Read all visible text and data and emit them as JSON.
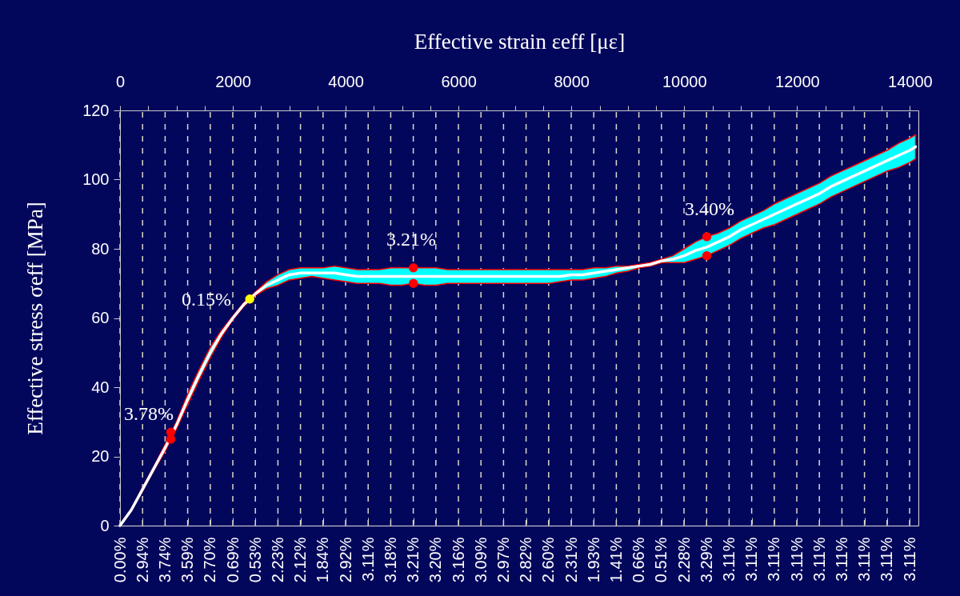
{
  "chart_data": {
    "type": "line",
    "x2label": "Effective strain εeff [με]",
    "ylabel": "Effective stress σeff [MPa]",
    "categories": [
      "0.00%",
      "2.94%",
      "3.74%",
      "3.59%",
      "2.70%",
      "0.69%",
      "0.53%",
      "2.23%",
      "2.12%",
      "1.84%",
      "2.92%",
      "3.11%",
      "3.18%",
      "3.21%",
      "3.20%",
      "3.16%",
      "3.09%",
      "2.97%",
      "2.82%",
      "2.60%",
      "2.31%",
      "1.93%",
      "1.41%",
      "0.66%",
      "0.51%",
      "2.28%",
      "3.29%",
      "3.11%",
      "3.11%",
      "3.11%",
      "3.11%",
      "3.11%",
      "3.11%",
      "3.11%",
      "3.11%",
      "3.11%"
    ],
    "x2lim": [
      0,
      14150
    ],
    "ylim": [
      0,
      120
    ],
    "yticks": [
      0,
      20,
      40,
      60,
      80,
      100,
      120
    ],
    "x2ticks": [
      0,
      {
        "value": 500,
        "label": null
      },
      {
        "value": 1000,
        "label": null
      },
      {
        "value": 1500,
        "label": null
      },
      2000,
      {
        "value": 2500,
        "label": null
      },
      {
        "value": 3000,
        "label": null
      },
      {
        "value": 3500,
        "label": null
      },
      4000,
      {
        "value": 4500,
        "label": null
      },
      {
        "value": 5000,
        "label": null
      },
      {
        "value": 5500,
        "label": null
      },
      6000,
      {
        "value": 6500,
        "label": null
      },
      {
        "value": 7000,
        "label": null
      },
      {
        "value": 7500,
        "label": null
      },
      8000,
      {
        "value": 8500,
        "label": null
      },
      {
        "value": 9000,
        "label": null
      },
      {
        "value": 9500,
        "label": null
      },
      10000,
      {
        "value": 10500,
        "label": null
      },
      {
        "value": 11000,
        "label": null
      },
      {
        "value": 11500,
        "label": null
      },
      12000,
      {
        "value": 12500,
        "label": null
      },
      {
        "value": 13000,
        "label": null
      },
      {
        "value": 13500,
        "label": null
      },
      14000
    ],
    "grid": "x",
    "series": [
      {
        "axis": "x2",
        "color": "#ffffff",
        "x": [
          0,
          200,
          400,
          600,
          800,
          1000,
          1200,
          1400,
          1600,
          1800,
          2000,
          2200,
          2400,
          2600,
          2800,
          3000,
          3200,
          3400,
          3600,
          3800,
          4000,
          4200,
          4400,
          4600,
          4800,
          5000,
          5200,
          5400,
          5600,
          5800,
          6000,
          6200,
          6400,
          6600,
          6800,
          7000,
          7200,
          7400,
          7600,
          7800,
          8000,
          8200,
          8400,
          8600,
          8800,
          9000,
          9200,
          9400,
          9600,
          9800,
          10000,
          10200,
          10400,
          10600,
          10800,
          11000,
          11200,
          11400,
          11600,
          11800,
          12000,
          12200,
          12400,
          12600,
          12800,
          13000,
          13200,
          13400,
          13600,
          13800,
          14000,
          14100
        ],
        "values": [
          0,
          4.5,
          10.5,
          16.5,
          22.5,
          29,
          36.5,
          43.5,
          50,
          55.5,
          60,
          64,
          67,
          69.5,
          71,
          72.5,
          73,
          73,
          73,
          73,
          72.5,
          72,
          72,
          72,
          72,
          72,
          72,
          72,
          72,
          72,
          72,
          72,
          72,
          72,
          72,
          72,
          72,
          72,
          72,
          72,
          72.5,
          72.5,
          73,
          73.5,
          74,
          74.5,
          75,
          75.5,
          76.5,
          77,
          78,
          79.5,
          80.5,
          82,
          83.5,
          85.5,
          87,
          88.5,
          90,
          91.5,
          93,
          94.5,
          96,
          98,
          99.5,
          101,
          102.5,
          104,
          105.5,
          107,
          108.5,
          109.5
        ],
        "lower": [
          0,
          4.5,
          10,
          16,
          21.5,
          28,
          35,
          42,
          48.5,
          54.5,
          59.5,
          63.5,
          66.5,
          68.5,
          69.5,
          71,
          71.5,
          72,
          71.5,
          71,
          70.5,
          70,
          70,
          70,
          69.5,
          69.5,
          70,
          69.5,
          69.5,
          70,
          70,
          70,
          70,
          70,
          70,
          70,
          70,
          70,
          70,
          70.5,
          71,
          71,
          71.5,
          72,
          73,
          73.5,
          74.5,
          75,
          76,
          76,
          76,
          77,
          78,
          79.5,
          81,
          83,
          84.5,
          86,
          87,
          88.5,
          90,
          91.5,
          93,
          95,
          96.5,
          98,
          99.5,
          101,
          102.5,
          103.5,
          105,
          106
        ],
        "upper": [
          0,
          4.5,
          11,
          17,
          23.5,
          30,
          38,
          45,
          51.5,
          56.5,
          60.5,
          64.5,
          67.5,
          70.5,
          72.5,
          74,
          74.5,
          74.5,
          74.5,
          75,
          74.5,
          74,
          74,
          74,
          74.5,
          74.5,
          74.5,
          74.5,
          74.5,
          74,
          74,
          74,
          74,
          74,
          74,
          74,
          74,
          74,
          74,
          74,
          74,
          74,
          74.5,
          74.5,
          75,
          75,
          75.5,
          76,
          77,
          78,
          80,
          82,
          83.5,
          84.5,
          86,
          88,
          89.5,
          91,
          93,
          94.5,
          96,
          97.5,
          99,
          101,
          102.5,
          104,
          105.5,
          107,
          108.5,
          110.5,
          112,
          113
        ]
      },
      {
        "axis": "x2",
        "type": "scatter",
        "color": "#ff0000",
        "marker": "circle",
        "x": [
          900,
          900,
          5200,
          5200,
          10400,
          10400
        ],
        "values": [
          27,
          25,
          74.5,
          70,
          83.5,
          78
        ]
      },
      {
        "axis": "x2",
        "type": "scatter",
        "color": "#ffff00",
        "marker": "circle",
        "x": [
          2300
        ],
        "values": [
          65.5
        ]
      }
    ],
    "annotations": [
      "3.78%",
      "0.15%",
      "3.21%",
      "3.40%"
    ]
  }
}
